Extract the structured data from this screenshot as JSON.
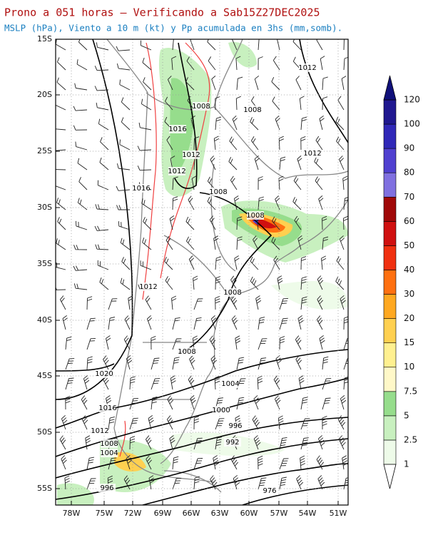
{
  "header": {
    "title": "Prono a 051 horas — Verificando a Sab15Z27DEC2025",
    "subtitle": "MSLP (hPa), Viento a 10 m (kt) y Pp acumulada en 3hs (mm,somb)."
  },
  "map": {
    "lat_labels": [
      "15S",
      "20S",
      "25S",
      "30S",
      "35S",
      "40S",
      "45S",
      "50S",
      "55S"
    ],
    "lon_labels": [
      "78W",
      "75W",
      "72W",
      "69W",
      "66W",
      "63W",
      "60W",
      "57W",
      "54W",
      "51W"
    ],
    "isobar_labels": [
      "1012",
      "1008",
      "1008",
      "1016",
      "1012",
      "1012",
      "1012",
      "1016",
      "1008",
      "1008",
      "1012",
      "1008",
      "1008",
      "1004",
      "1020",
      "1016",
      "1000",
      "996",
      "1012",
      "1008",
      "1004",
      "992",
      "996",
      "976"
    ]
  },
  "colorbar": {
    "levels": [
      1,
      2.5,
      5,
      7.5,
      10,
      15,
      20,
      30,
      40,
      50,
      60,
      70,
      80,
      90,
      100,
      120
    ],
    "colors": [
      "#eefbe9",
      "#c8f0bf",
      "#96dd8c",
      "#fff8c8",
      "#fff090",
      "#ffd050",
      "#ffa820",
      "#ff7010",
      "#f03010",
      "#d01010",
      "#a00808",
      "#8070e0",
      "#5040d0",
      "#3028b8",
      "#201890",
      "#10107a"
    ]
  }
}
